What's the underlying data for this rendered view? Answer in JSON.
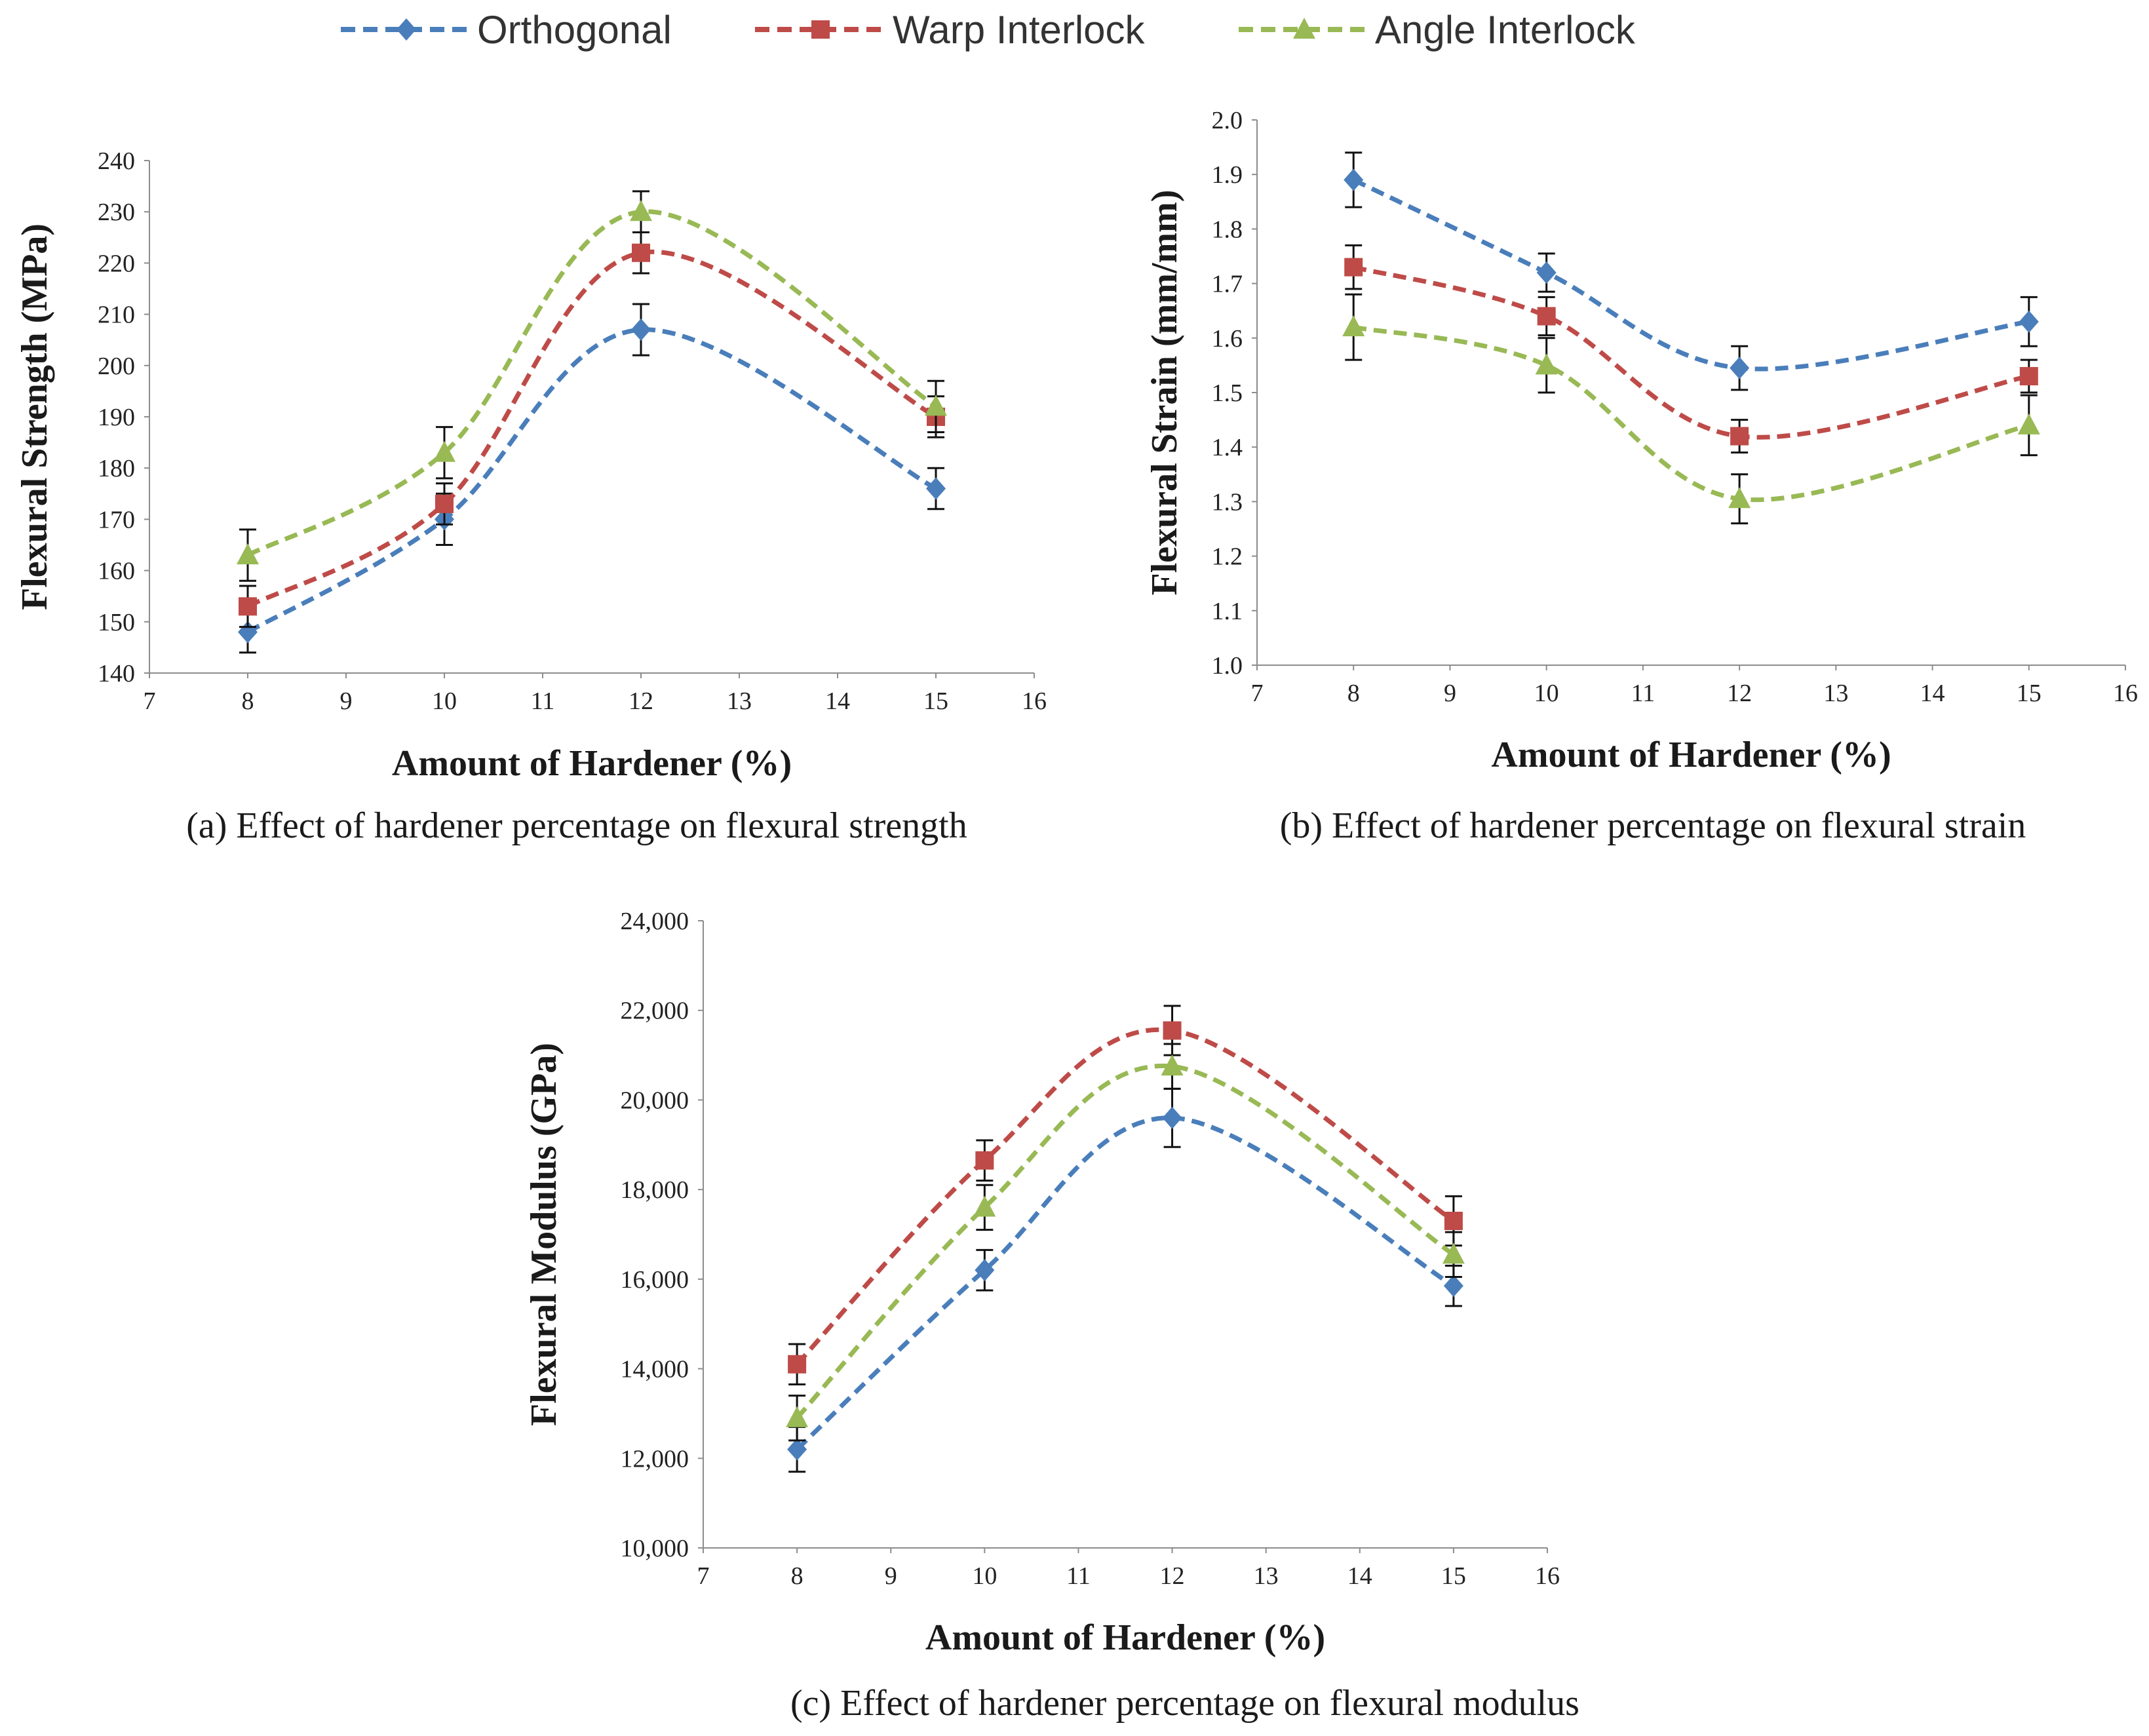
{
  "legend": [
    {
      "name": "Orthogonal",
      "color": "#4a7ebb",
      "marker": "diamond"
    },
    {
      "name": "Warp Interlock",
      "color": "#be4b48",
      "marker": "square"
    },
    {
      "name": "Angle Interlock",
      "color": "#98b954",
      "marker": "triangle"
    }
  ],
  "chart_data": [
    {
      "id": "a",
      "type": "line",
      "caption": "(a) Effect of hardener percentage on flexural strength",
      "xlabel": "Amount of Hardener (%)",
      "ylabel": "Flexural Strength (MPa)",
      "xlim": [
        7,
        16
      ],
      "ylim": [
        140,
        240
      ],
      "xticks": [
        "7",
        "8",
        "9",
        "10",
        "11",
        "12",
        "13",
        "14",
        "15",
        "16"
      ],
      "yticks": [
        "140",
        "150",
        "160",
        "170",
        "180",
        "190",
        "200",
        "210",
        "220",
        "230",
        "240"
      ],
      "x": [
        8,
        10,
        12,
        15
      ],
      "series": [
        {
          "name": "Orthogonal",
          "values": [
            148,
            170,
            207,
            176
          ],
          "errors": [
            4,
            5,
            5,
            4
          ]
        },
        {
          "name": "Warp Interlock",
          "values": [
            153,
            173,
            222,
            190
          ],
          "errors": [
            4,
            4,
            4,
            4
          ]
        },
        {
          "name": "Angle Interlock",
          "values": [
            163,
            183,
            230,
            192
          ],
          "errors": [
            5,
            5,
            4,
            5
          ]
        }
      ]
    },
    {
      "id": "b",
      "type": "line",
      "caption": "(b) Effect of hardener percentage on flexural strain",
      "xlabel": "Amount of Hardener (%)",
      "ylabel": "Flexural Strain (mm/mm)",
      "xlim": [
        7,
        16
      ],
      "ylim": [
        1.0,
        2.0
      ],
      "xticks": [
        "7",
        "8",
        "9",
        "10",
        "11",
        "12",
        "13",
        "14",
        "15",
        "16"
      ],
      "yticks": [
        "1.0",
        "1.1",
        "1.2",
        "1.3",
        "1.4",
        "1.5",
        "1.6",
        "1.7",
        "1.8",
        "1.9",
        "2.0"
      ],
      "x": [
        8,
        10,
        12,
        15
      ],
      "series": [
        {
          "name": "Orthogonal",
          "values": [
            1.89,
            1.72,
            1.545,
            1.63
          ],
          "errors": [
            0.05,
            0.035,
            0.04,
            0.045
          ]
        },
        {
          "name": "Warp Interlock",
          "values": [
            1.73,
            1.64,
            1.42,
            1.53
          ],
          "errors": [
            0.04,
            0.035,
            0.03,
            0.03
          ]
        },
        {
          "name": "Angle Interlock",
          "values": [
            1.62,
            1.55,
            1.305,
            1.44
          ],
          "errors": [
            0.06,
            0.05,
            0.045,
            0.055
          ]
        }
      ]
    },
    {
      "id": "c",
      "type": "line",
      "caption": "(c) Effect of hardener percentage on flexural modulus",
      "xlabel": "Amount of Hardener (%)",
      "ylabel": "Flexural Modulus (GPa)",
      "xlim": [
        7,
        16
      ],
      "ylim": [
        10000,
        24000
      ],
      "xticks": [
        "7",
        "8",
        "9",
        "10",
        "11",
        "12",
        "13",
        "14",
        "15",
        "16"
      ],
      "yticks": [
        "10,000",
        "12,000",
        "14,000",
        "16,000",
        "18,000",
        "20,000",
        "22,000",
        "24,000"
      ],
      "x": [
        8,
        10,
        12,
        15
      ],
      "series": [
        {
          "name": "Orthogonal",
          "values": [
            12200,
            16200,
            19600,
            15850
          ],
          "errors": [
            500,
            450,
            650,
            450
          ]
        },
        {
          "name": "Warp Interlock",
          "values": [
            14100,
            18650,
            21550,
            17300
          ],
          "errors": [
            450,
            450,
            550,
            550
          ]
        },
        {
          "name": "Angle Interlock",
          "values": [
            12900,
            17600,
            20750,
            16550
          ],
          "errors": [
            500,
            500,
            500,
            500
          ]
        }
      ]
    }
  ]
}
